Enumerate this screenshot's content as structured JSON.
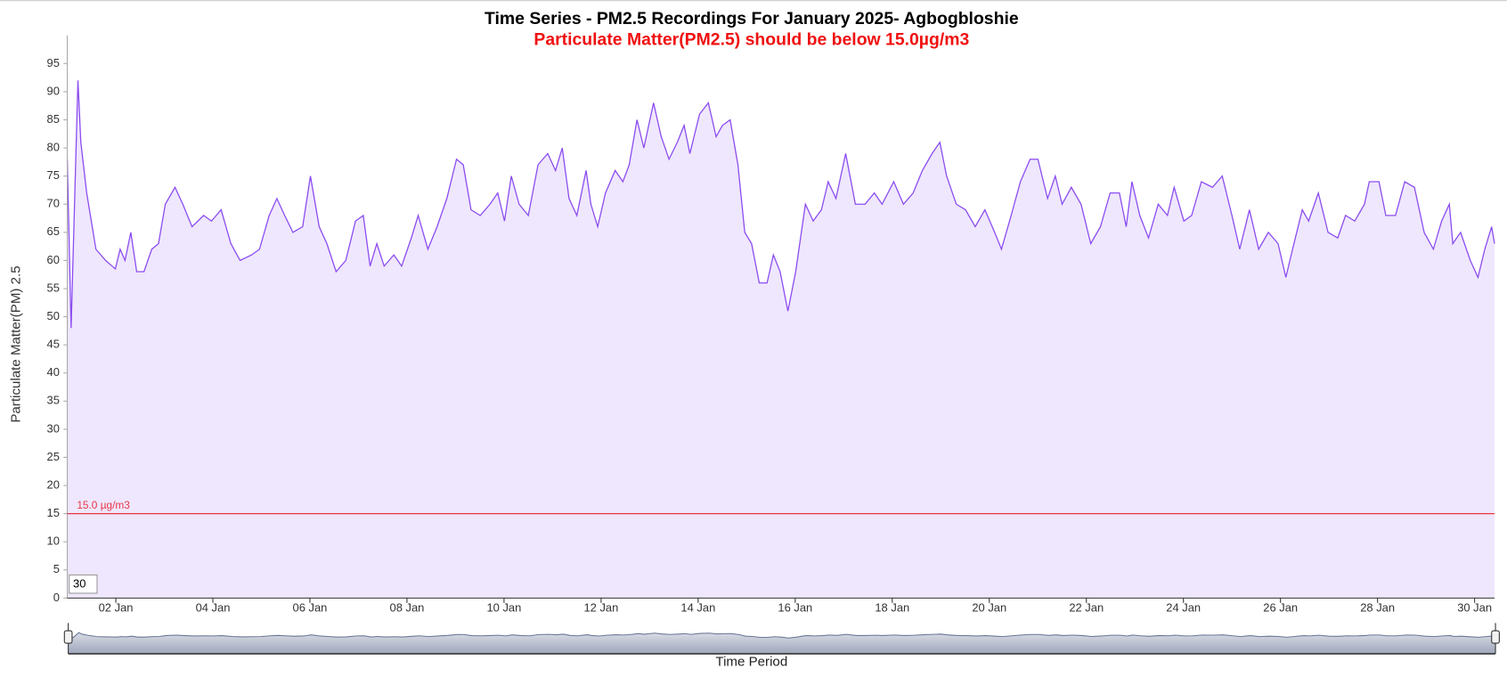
{
  "chart_data": {
    "type": "area",
    "title": "Time Series - PM2.5 Recordings For January 2025- Agbogbloshie",
    "subtitle": "Particulate Matter(PM2.5) should be below 15.0µg/m3",
    "ylabel": "Particulate Matter(PM) 2.5",
    "xlabel": "Time Period",
    "color": "#8b4cf0",
    "fill": "#efe7fd",
    "x": [
      1.0,
      1.08,
      1.22,
      1.28,
      1.4,
      1.59,
      1.79,
      1.99,
      2.09,
      2.19,
      2.31,
      2.43,
      2.58,
      2.74,
      2.88,
      3.02,
      3.22,
      3.38,
      3.57,
      3.81,
      3.97,
      4.17,
      4.37,
      4.56,
      4.8,
      4.96,
      5.16,
      5.32,
      5.48,
      5.65,
      5.85,
      6.01,
      6.19,
      6.35,
      6.54,
      6.74,
      6.94,
      7.1,
      7.24,
      7.38,
      7.53,
      7.73,
      7.89,
      8.09,
      8.23,
      8.43,
      8.62,
      8.82,
      9.02,
      9.16,
      9.32,
      9.51,
      9.71,
      9.87,
      10.01,
      10.15,
      10.31,
      10.5,
      10.7,
      10.9,
      11.06,
      11.2,
      11.34,
      11.5,
      11.69,
      11.79,
      11.93,
      12.09,
      12.29,
      12.45,
      12.58,
      12.74,
      12.88,
      13.08,
      13.24,
      13.4,
      13.57,
      13.71,
      13.83,
      14.03,
      14.21,
      14.37,
      14.5,
      14.66,
      14.82,
      14.96,
      15.1,
      15.26,
      15.42,
      15.55,
      15.69,
      15.85,
      16.01,
      16.21,
      16.37,
      16.54,
      16.68,
      16.84,
      17.04,
      17.24,
      17.44,
      17.63,
      17.79,
      18.03,
      18.23,
      18.43,
      18.62,
      18.82,
      18.98,
      19.12,
      19.32,
      19.51,
      19.71,
      19.91,
      20.11,
      20.25,
      20.45,
      20.64,
      20.84,
      21.0,
      21.2,
      21.36,
      21.5,
      21.69,
      21.89,
      22.09,
      22.29,
      22.49,
      22.68,
      22.82,
      22.94,
      23.1,
      23.28,
      23.48,
      23.67,
      23.81,
      24.01,
      24.17,
      24.37,
      24.6,
      24.8,
      25.0,
      25.16,
      25.36,
      25.55,
      25.75,
      25.95,
      26.11,
      26.25,
      26.45,
      26.58,
      26.78,
      26.98,
      27.18,
      27.34,
      27.53,
      27.73,
      27.83,
      28.03,
      28.17,
      28.37,
      28.56,
      28.76,
      28.96,
      29.15,
      29.32,
      29.48,
      29.55,
      29.71,
      29.91,
      30.07,
      30.21,
      30.35,
      30.41
    ],
    "values": [
      78,
      48,
      92,
      81,
      72,
      62,
      60,
      58.5,
      62,
      60,
      65,
      58,
      58,
      62,
      63,
      70,
      73,
      70,
      66,
      68,
      67,
      69,
      63,
      60,
      61,
      62,
      68,
      71,
      68,
      65,
      66,
      75,
      66,
      63,
      58,
      60,
      67,
      68,
      59,
      63,
      59,
      61,
      59,
      64,
      68,
      62,
      66,
      71,
      78,
      77,
      69,
      68,
      70,
      72,
      67,
      75,
      70,
      68,
      77,
      79,
      76,
      80,
      71,
      68,
      76,
      70,
      66,
      72,
      76,
      74,
      77,
      85,
      80,
      88,
      82,
      78,
      81,
      84,
      79,
      86,
      88,
      82,
      84,
      85,
      77,
      65,
      63,
      56,
      56,
      61,
      58,
      51,
      58,
      70,
      67,
      69,
      74,
      71,
      79,
      70,
      70,
      72,
      70,
      74,
      70,
      72,
      76,
      79,
      81,
      75,
      70,
      69,
      66,
      69,
      65,
      62,
      68,
      74,
      78,
      78,
      71,
      75,
      70,
      73,
      70,
      63,
      66,
      72,
      72,
      66,
      74,
      68,
      64,
      70,
      68,
      73,
      67,
      68,
      74,
      73,
      75,
      68,
      62,
      69,
      62,
      65,
      63,
      57,
      62,
      69,
      67,
      72,
      65,
      64,
      68,
      67,
      70,
      74,
      74,
      68,
      68,
      74,
      73,
      65,
      62,
      67,
      70,
      63,
      65,
      60,
      57,
      62,
      66,
      63
    ],
    "xlim": [
      1,
      30.41
    ],
    "xticks": [
      {
        "value": 2,
        "label": "02 Jan"
      },
      {
        "value": 4,
        "label": "04 Jan"
      },
      {
        "value": 6,
        "label": "06 Jan"
      },
      {
        "value": 8,
        "label": "08 Jan"
      },
      {
        "value": 10,
        "label": "10 Jan"
      },
      {
        "value": 12,
        "label": "12 Jan"
      },
      {
        "value": 14,
        "label": "14 Jan"
      },
      {
        "value": 16,
        "label": "16 Jan"
      },
      {
        "value": 18,
        "label": "18 Jan"
      },
      {
        "value": 20,
        "label": "20 Jan"
      },
      {
        "value": 22,
        "label": "22 Jan"
      },
      {
        "value": 24,
        "label": "24 Jan"
      },
      {
        "value": 26,
        "label": "26 Jan"
      },
      {
        "value": 28,
        "label": "28 Jan"
      },
      {
        "value": 30,
        "label": "30 Jan"
      }
    ],
    "ylim": [
      0,
      100
    ],
    "yticks": [
      0,
      5,
      10,
      15,
      20,
      25,
      30,
      35,
      40,
      45,
      50,
      55,
      60,
      65,
      70,
      75,
      80,
      85,
      90,
      95
    ],
    "threshold": {
      "value": 15,
      "label": "15.0 µg/m3",
      "color": "#e8364a"
    },
    "navigator": true
  },
  "controls": {
    "range": "30"
  }
}
